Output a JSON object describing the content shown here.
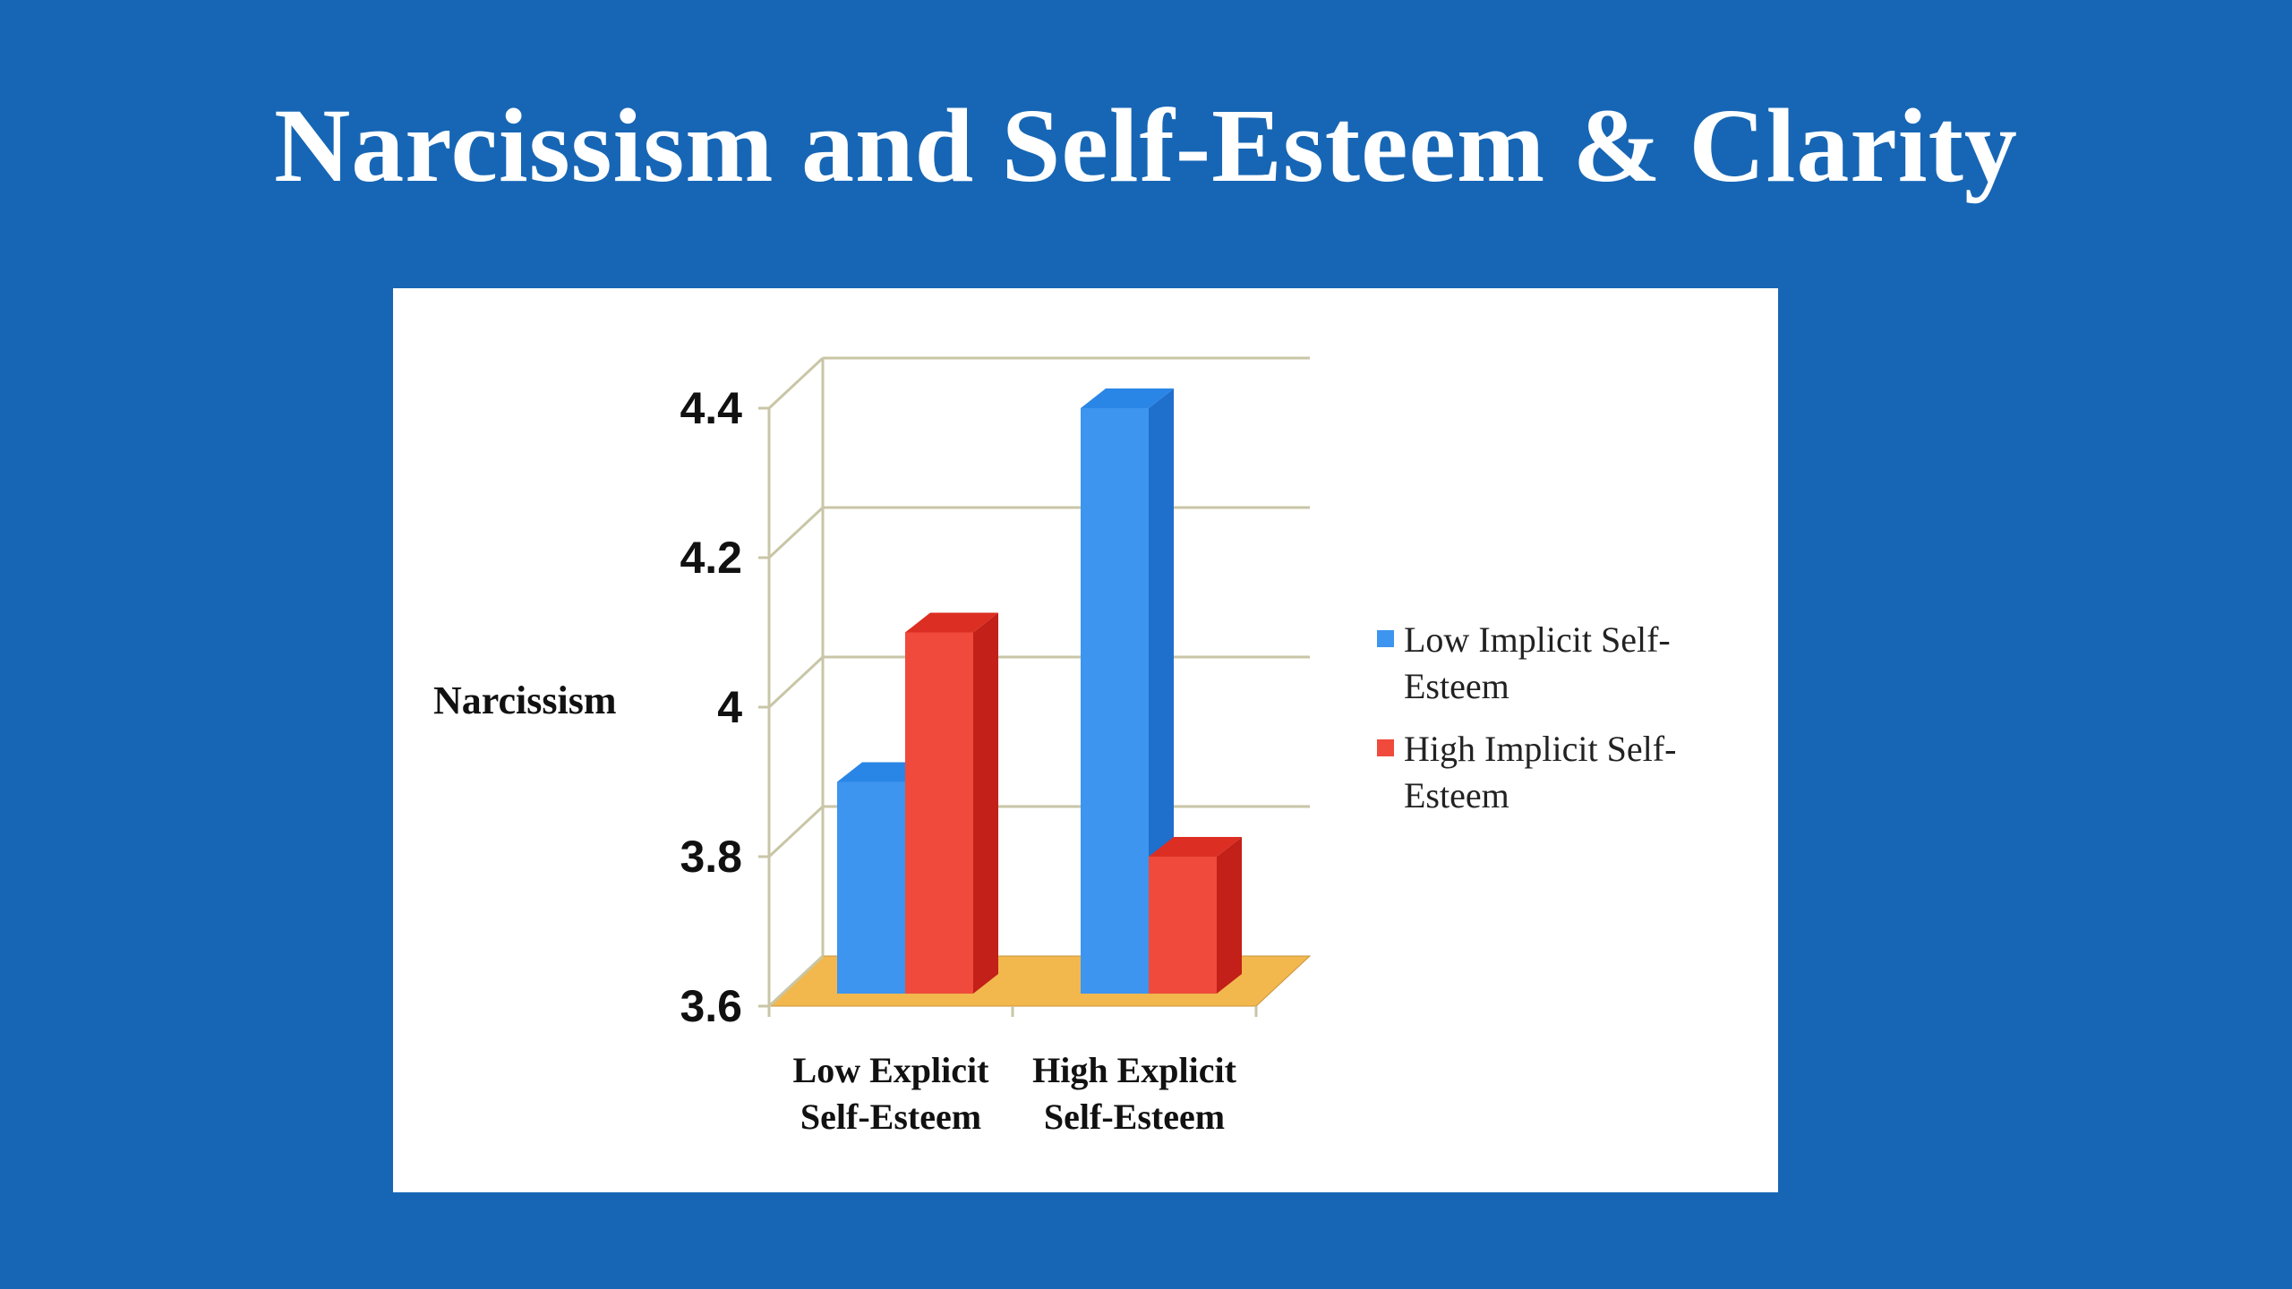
{
  "slide": {
    "title": "Narcissism and Self-Esteem & Clarity"
  },
  "chart_data": {
    "type": "bar",
    "title": "",
    "ylabel": "Narcissism",
    "xlabel": "",
    "categories": [
      [
        "Low Explicit",
        "Self-Esteem"
      ],
      [
        "High Explicit",
        "Self-Esteem"
      ]
    ],
    "series": [
      {
        "name_lines": [
          "Low Implicit Self-",
          "Esteem"
        ],
        "color": "#3d95ef",
        "side_color": "#1f6fcc",
        "top_color": "#2a86e6",
        "values": [
          3.9,
          4.4
        ]
      },
      {
        "name_lines": [
          "High Implicit Self-",
          "Esteem"
        ],
        "color": "#ef4a3c",
        "side_color": "#c22018",
        "top_color": "#dc2e22",
        "values": [
          4.1,
          3.8
        ]
      }
    ],
    "ylim": [
      3.6,
      4.4
    ],
    "yticks": [
      "3.6",
      "3.8",
      "4",
      "4.2",
      "4.4"
    ],
    "grid": true,
    "three_d": true,
    "floor_color": "#f2b84e",
    "legend_position": "right"
  }
}
